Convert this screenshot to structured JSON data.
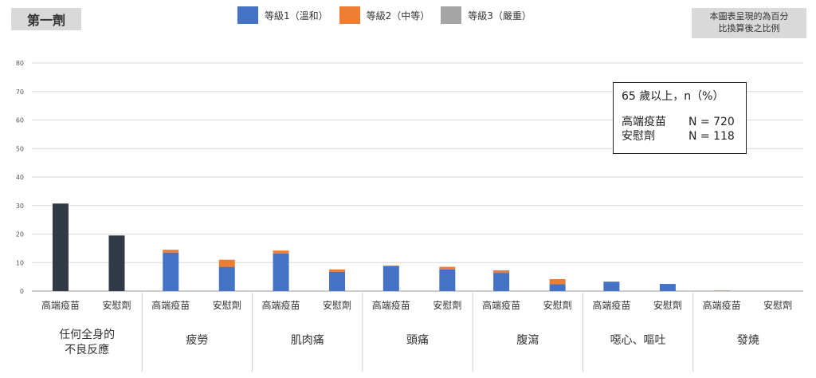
{
  "header": {
    "dose_label": "第一劑",
    "note": [
      "本圖表呈現的為百分",
      "比換算後之比例"
    ]
  },
  "legend": [
    {
      "label": "等級1（溫和）",
      "color": "#4472c4"
    },
    {
      "label": "等級2（中等）",
      "color": "#ed7d31"
    },
    {
      "label": "等級3（嚴重）",
      "color": "#a5a5a5"
    }
  ],
  "info_box": {
    "title": "65 歲以上，n（%）",
    "rows": [
      {
        "label": "高端疫苗",
        "value": "N = 720"
      },
      {
        "label": "安慰劑",
        "value": "N = 118"
      }
    ]
  },
  "chart_data": {
    "type": "bar",
    "stacked": true,
    "ylim": [
      0,
      80
    ],
    "yticks": [
      0,
      10,
      20,
      30,
      40,
      50,
      60,
      70,
      80
    ],
    "grid": true,
    "legend_position": "top",
    "groups": [
      {
        "label": [
          "任何全身的",
          "不良反應"
        ],
        "bars": [
          {
            "label": "高端疫苗",
            "total": 30.7,
            "grade1": null,
            "grade2": null,
            "grade3": null
          },
          {
            "label": "安慰劑",
            "total": 19.5,
            "grade1": null,
            "grade2": null,
            "grade3": null
          }
        ]
      },
      {
        "label": [
          "疲勞"
        ],
        "bars": [
          {
            "label": "高端疫苗",
            "grade1": 13.5,
            "grade2": 1.0,
            "grade3": 0
          },
          {
            "label": "安慰劑",
            "grade1": 8.5,
            "grade2": 2.5,
            "grade3": 0
          }
        ]
      },
      {
        "label": [
          "肌肉痛"
        ],
        "bars": [
          {
            "label": "高端疫苗",
            "grade1": 13.2,
            "grade2": 1.0,
            "grade3": 0
          },
          {
            "label": "安慰劑",
            "grade1": 6.8,
            "grade2": 0.8,
            "grade3": 0
          }
        ]
      },
      {
        "label": [
          "頭痛"
        ],
        "bars": [
          {
            "label": "高端疫苗",
            "grade1": 8.7,
            "grade2": 0.3,
            "grade3": 0
          },
          {
            "label": "安慰劑",
            "grade1": 7.6,
            "grade2": 0.9,
            "grade3": 0
          }
        ]
      },
      {
        "label": [
          "腹瀉"
        ],
        "bars": [
          {
            "label": "高端疫苗",
            "grade1": 6.4,
            "grade2": 0.9,
            "grade3": 0
          },
          {
            "label": "安慰劑",
            "grade1": 2.4,
            "grade2": 1.8,
            "grade3": 0
          }
        ]
      },
      {
        "label": [
          "噁心、嘔吐"
        ],
        "bars": [
          {
            "label": "高端疫苗",
            "grade1": 3.3,
            "grade2": 0,
            "grade3": 0
          },
          {
            "label": "安慰劑",
            "grade1": 2.5,
            "grade2": 0,
            "grade3": 0
          }
        ]
      },
      {
        "label": [
          "發燒"
        ],
        "bars": [
          {
            "label": "高端疫苗",
            "grade1": 0.1,
            "grade2": 0.1,
            "grade3": 0
          },
          {
            "label": "安慰劑",
            "grade1": 0,
            "grade2": 0,
            "grade3": 0
          }
        ]
      }
    ],
    "colors": {
      "total": "#323a48",
      "grade1": "#4472c4",
      "grade2": "#ed7d31",
      "grade3": "#a5a5a5"
    }
  }
}
